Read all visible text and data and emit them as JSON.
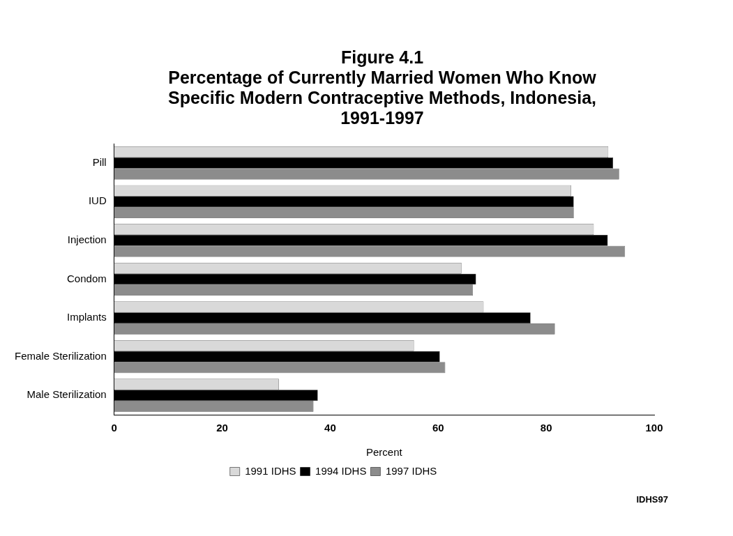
{
  "chart_data": {
    "type": "bar",
    "orientation": "horizontal",
    "title": "Figure 4.1",
    "subtitle": "Percentage of Currently Married Women Who Know Specific Modern Contraceptive Methods, Indonesia, 1991-1997",
    "xlabel": "Percent",
    "categories": [
      "Pill",
      "IUD",
      "Injection",
      "Condom",
      "Implants",
      "Female Sterilization",
      "Male Sterilization"
    ],
    "series": [
      {
        "name": "1991 IDHS",
        "color": "#d9d9d9",
        "values": [
          91.5,
          84.6,
          88.8,
          64.3,
          68.4,
          55.5,
          30.5
        ]
      },
      {
        "name": "1994 IDHS",
        "color": "#000000",
        "values": [
          92.4,
          85.1,
          91.4,
          67.0,
          77.1,
          60.3,
          37.7
        ]
      },
      {
        "name": "1997 IDHS",
        "color": "#8c8c8c",
        "values": [
          93.5,
          85.1,
          94.6,
          66.4,
          81.6,
          61.3,
          36.9
        ]
      }
    ],
    "xlim": [
      0,
      100
    ],
    "xticks": [
      0,
      20,
      40,
      60,
      80,
      100
    ],
    "grid": false,
    "legend": "bottom",
    "annotations": [
      "IDHS97"
    ]
  }
}
